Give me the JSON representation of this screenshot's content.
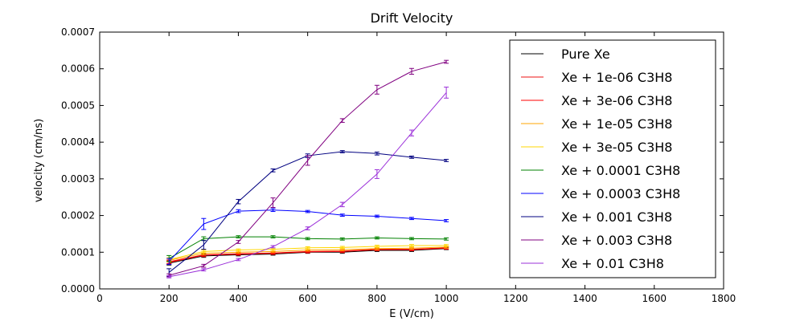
{
  "chart_data": {
    "type": "line",
    "title": "Drift Velocity",
    "xlabel": "E (V/cm)",
    "ylabel": "velocity (cm/ns)",
    "xlim": [
      0,
      1800
    ],
    "ylim": [
      0,
      0.0007
    ],
    "xticks": [
      "0",
      "200",
      "400",
      "600",
      "800",
      "1000",
      "1200",
      "1400",
      "1600",
      "1800"
    ],
    "yticks": [
      "0.0000",
      "0.0001",
      "0.0002",
      "0.0003",
      "0.0004",
      "0.0005",
      "0.0006",
      "0.0007"
    ],
    "grid": false,
    "legend_position": "top-right",
    "x": [
      200,
      300,
      400,
      500,
      600,
      700,
      800,
      900,
      1000
    ],
    "series": [
      {
        "name": "Pure Xe",
        "color": "#000000",
        "values": [
          7e-05,
          9e-05,
          9.3e-05,
          9.5e-05,
          0.0001,
          0.0001,
          0.000105,
          0.000105,
          0.00011
        ],
        "errors": [
          5e-06,
          4e-06,
          3e-06,
          3e-06,
          3e-06,
          3e-06,
          3e-06,
          3e-06,
          3e-06
        ]
      },
      {
        "name": "Xe + 1e-06 C3H8",
        "color": "#ee1111",
        "values": [
          7.2e-05,
          9.2e-05,
          9.5e-05,
          9.7e-05,
          0.000101,
          0.000102,
          0.000107,
          0.000107,
          0.000111
        ],
        "errors": [
          5e-06,
          4e-06,
          3e-06,
          3e-06,
          3e-06,
          3e-06,
          3e-06,
          3e-06,
          3e-06
        ]
      },
      {
        "name": "Xe + 3e-06 C3H8",
        "color": "#ff0000",
        "values": [
          7.4e-05,
          9.3e-05,
          9.6e-05,
          9.8e-05,
          0.000102,
          0.000103,
          0.000108,
          0.000108,
          0.000112
        ],
        "errors": [
          5e-06,
          4e-06,
          3e-06,
          3e-06,
          3e-06,
          3e-06,
          3e-06,
          3e-06,
          3e-06
        ]
      },
      {
        "name": "Xe + 1e-05 C3H8",
        "color": "#ffa500",
        "values": [
          7.8e-05,
          9.7e-05,
          0.0001,
          0.000102,
          0.000106,
          0.000107,
          0.00011,
          0.000111,
          0.000114
        ],
        "errors": [
          5e-06,
          4e-06,
          3e-06,
          3e-06,
          3e-06,
          3e-06,
          3e-06,
          3e-06,
          3e-06
        ]
      },
      {
        "name": "Xe + 3e-05 C3H8",
        "color": "#ffd700",
        "values": [
          8e-05,
          0.000102,
          0.000106,
          0.000108,
          0.000112,
          0.000113,
          0.000116,
          0.000118,
          0.000118
        ],
        "errors": [
          5e-06,
          4e-06,
          3e-06,
          3e-06,
          3e-06,
          3e-06,
          3e-06,
          3e-06,
          3e-06
        ]
      },
      {
        "name": "Xe + 0.0001 C3H8",
        "color": "#008000",
        "values": [
          8.3e-05,
          0.000137,
          0.000142,
          0.000142,
          0.000137,
          0.000136,
          0.000139,
          0.000137,
          0.000136
        ],
        "errors": [
          8e-06,
          5e-06,
          3e-06,
          3e-06,
          3e-06,
          3e-06,
          3e-06,
          3e-06,
          3e-06
        ]
      },
      {
        "name": "Xe + 0.0003 C3H8",
        "color": "#0000ff",
        "values": [
          7.5e-05,
          0.000177,
          0.000212,
          0.000215,
          0.000211,
          0.000201,
          0.000198,
          0.000192,
          0.000186
        ],
        "errors": [
          8e-06,
          1.5e-05,
          4e-06,
          4e-06,
          3e-06,
          3e-06,
          3e-06,
          3e-06,
          3e-06
        ]
      },
      {
        "name": "Xe + 0.001 C3H8",
        "color": "#000080",
        "values": [
          4.5e-05,
          0.00012,
          0.000238,
          0.000323,
          0.000363,
          0.000374,
          0.000369,
          0.000359,
          0.00035
        ],
        "errors": [
          1e-05,
          1.2e-05,
          6e-06,
          4e-06,
          5e-06,
          3e-06,
          4e-06,
          3e-06,
          3e-06
        ]
      },
      {
        "name": "Xe + 0.003 C3H8",
        "color": "#800080",
        "values": [
          3.7e-05,
          6.3e-05,
          0.000128,
          0.000235,
          0.00035,
          0.000459,
          0.000543,
          0.000593,
          0.000619
        ],
        "errors": [
          4e-06,
          4e-06,
          4e-06,
          1.3e-05,
          1.3e-05,
          5e-06,
          1.2e-05,
          8e-06,
          4e-06
        ]
      },
      {
        "name": "Xe + 0.01 C3H8",
        "color": "#9b30d9",
        "values": [
          3.3e-05,
          5.2e-05,
          8e-05,
          0.000115,
          0.000165,
          0.00023,
          0.000313,
          0.000425,
          0.000535
        ],
        "errors": [
          3e-06,
          3e-06,
          3e-06,
          3e-06,
          4e-06,
          6e-06,
          1.2e-05,
          8e-06,
          1.5e-05
        ]
      }
    ]
  }
}
